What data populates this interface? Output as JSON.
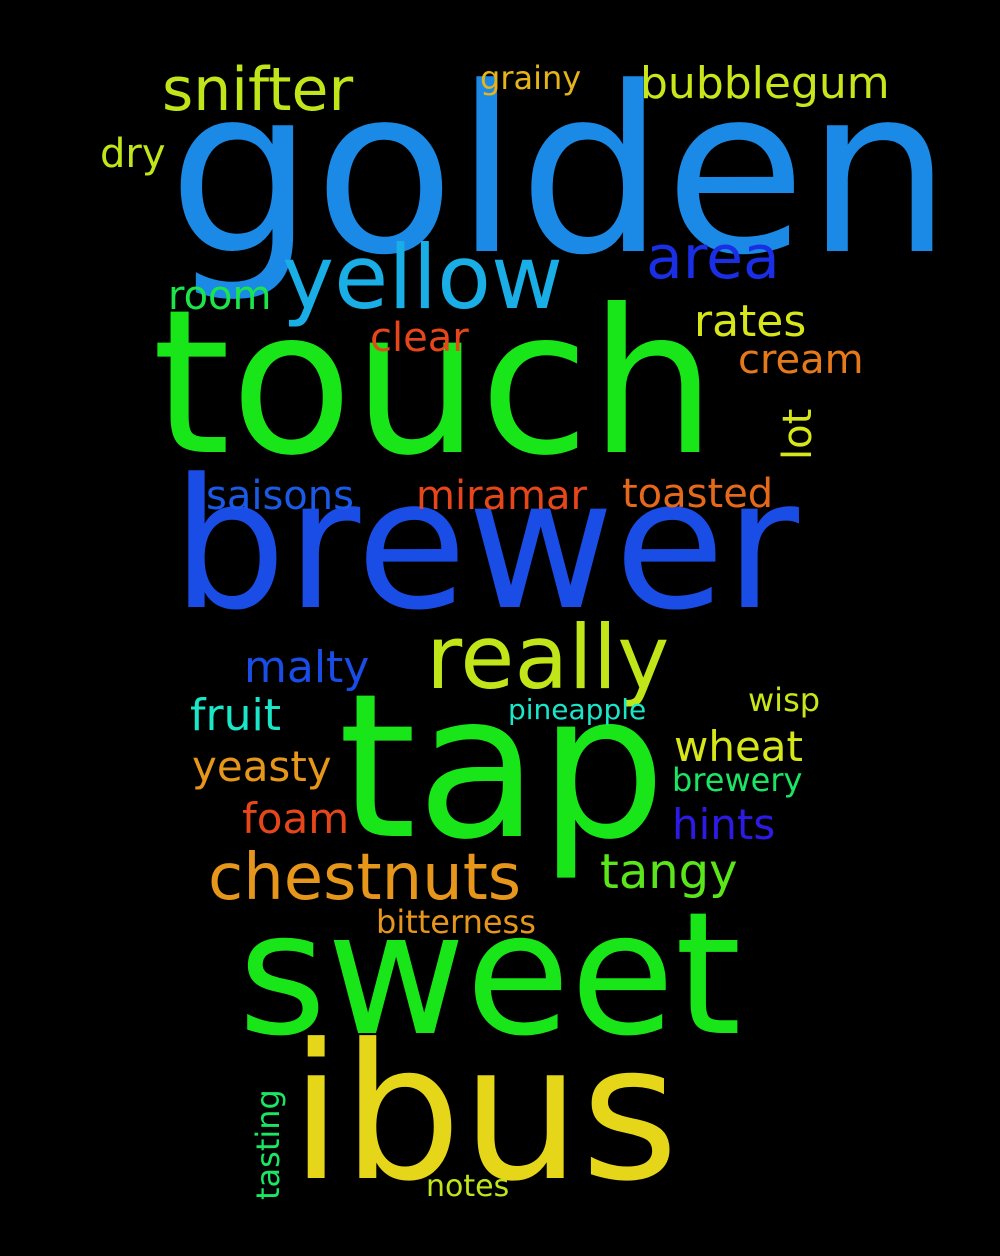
{
  "background_color": "#000000",
  "words": {
    "golden": {
      "text": "golden",
      "color": "#1a8ae6"
    },
    "touch": {
      "text": "touch",
      "color": "#19e619"
    },
    "brewer": {
      "text": "brewer",
      "color": "#1a4ce6"
    },
    "tap": {
      "text": "tap",
      "color": "#19e619"
    },
    "sweet": {
      "text": "sweet",
      "color": "#19e619"
    },
    "ibus": {
      "text": "ibus",
      "color": "#e6d619"
    },
    "yellow": {
      "text": "yellow",
      "color": "#19aee6"
    },
    "really": {
      "text": "really",
      "color": "#c0e619"
    },
    "chestnuts": {
      "text": "chestnuts",
      "color": "#e6961a"
    },
    "snifter": {
      "text": "snifter",
      "color": "#c0e619"
    },
    "bubblegum": {
      "text": "bubblegum",
      "color": "#c8e619"
    },
    "area": {
      "text": "area",
      "color": "#1a2ee6"
    },
    "rates": {
      "text": "rates",
      "color": "#d6e619"
    },
    "room": {
      "text": "room",
      "color": "#1ae64c"
    },
    "clear": {
      "text": "clear",
      "color": "#e6461a"
    },
    "cream": {
      "text": "cream",
      "color": "#e67a1a"
    },
    "lot": {
      "text": "lot",
      "color": "#d6e619"
    },
    "saisons": {
      "text": "saisons",
      "color": "#1a5ae6"
    },
    "miramar": {
      "text": "miramar",
      "color": "#e6461a"
    },
    "toasted": {
      "text": "toasted",
      "color": "#e6681a"
    },
    "malty": {
      "text": "malty",
      "color": "#1a4ce6"
    },
    "fruit": {
      "text": "fruit",
      "color": "#1ae6c8"
    },
    "pineapple": {
      "text": "pineapple",
      "color": "#1ae6c8"
    },
    "wisp": {
      "text": "wisp",
      "color": "#c8e619"
    },
    "wheat": {
      "text": "wheat",
      "color": "#d6e619"
    },
    "yeasty": {
      "text": "yeasty",
      "color": "#e6961a"
    },
    "brewery": {
      "text": "brewery",
      "color": "#1ae664"
    },
    "foam": {
      "text": "foam",
      "color": "#e6461a"
    },
    "hints": {
      "text": "hints",
      "color": "#2e1ae6"
    },
    "tangy": {
      "text": "tangy",
      "color": "#5ae619"
    },
    "bitterness": {
      "text": "bitterness",
      "color": "#e6961a"
    },
    "dry": {
      "text": "dry",
      "color": "#c0e619"
    },
    "grainy": {
      "text": "grainy",
      "color": "#e6b41a"
    },
    "tasting": {
      "text": "tasting",
      "color": "#1ae664"
    },
    "notes": {
      "text": "notes",
      "color": "#c0e619"
    }
  }
}
